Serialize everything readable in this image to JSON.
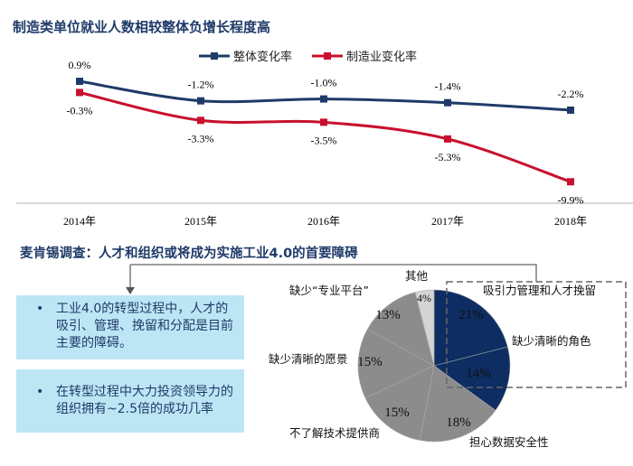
{
  "header": {
    "title": "制造类单位就业人数相较整体负增长程度高"
  },
  "chart_data": [
    {
      "type": "line",
      "categories": [
        "2014年",
        "2015年",
        "2016年",
        "2017年",
        "2018年"
      ],
      "series": [
        {
          "name": "整体变化率",
          "color": "#1f3a68",
          "values": [
            0.9,
            -1.2,
            -1.0,
            -1.4,
            -2.2
          ],
          "labels": [
            "0.9%",
            "-1.2%",
            "-1.0%",
            "-1.4%",
            "-2.2%"
          ]
        },
        {
          "name": "制造业变化率",
          "color": "#c8102e",
          "values": [
            -0.3,
            -3.3,
            -3.5,
            -5.3,
            -9.9
          ],
          "labels": [
            "-0.3%",
            "-3.3%",
            "-3.5%",
            "-5.3%",
            "-9.9%"
          ]
        }
      ],
      "legend": "top-center",
      "grid": false
    },
    {
      "type": "pie",
      "title": "麦肯锡调查：人才和组织或将成为实施工业4.0的首要障碍",
      "slices": [
        {
          "label": "吸引力管理和人才挽留",
          "value": 21,
          "text": "21%",
          "color": "#0e2d63"
        },
        {
          "label": "缺少清晰的角色",
          "value": 14,
          "text": "14%",
          "color": "#0e2d63"
        },
        {
          "label": "担心数据安全性",
          "value": 18,
          "text": "18%",
          "color": "#8c8c8c"
        },
        {
          "label": "不了解技术提供商",
          "value": 15,
          "text": "15%",
          "color": "#8c8c8c"
        },
        {
          "label": "缺少清晰的愿景",
          "value": 15,
          "text": "15%",
          "color": "#8c8c8c"
        },
        {
          "label": "缺少“专业平台”",
          "value": 13,
          "text": "13%",
          "color": "#8c8c8c"
        },
        {
          "label": "其他",
          "value": 4,
          "text": "4%",
          "color": "#d4d4d6"
        }
      ]
    }
  ],
  "survey": {
    "title": "麦肯锡调查：人才和组织或将成为实施工业4.0的首要障碍"
  },
  "bullets": [
    {
      "bullet": "•",
      "text": "工业4.0的转型过程中，人才的吸引、管理、挽留和分配是目前主要的障碍。"
    },
    {
      "bullet": "•",
      "text": "在转型过程中大力投资领导力的组织拥有~2.5倍的成功几率"
    }
  ]
}
